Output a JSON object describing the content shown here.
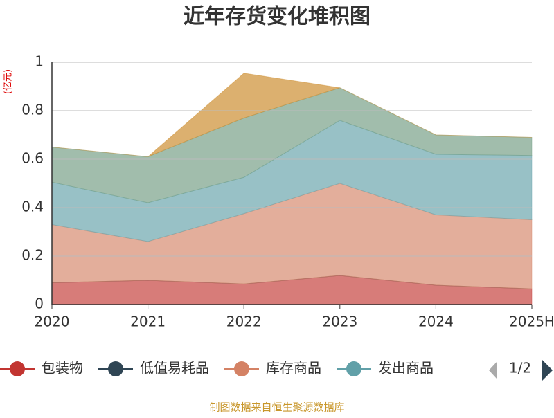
{
  "chart_data": {
    "type": "stacked_area",
    "title": "近年存货变化堆积图",
    "y_label": "(亿元)",
    "categories": [
      "2020",
      "2021",
      "2022",
      "2023",
      "2024",
      "2025H"
    ],
    "series": [
      {
        "name": "包装物",
        "color": "#c23531",
        "values": [
          0.09,
          0.1,
          0.085,
          0.12,
          0.08,
          0.065
        ]
      },
      {
        "name": "低值易耗品",
        "color": "#2f4554",
        "values": [
          0,
          0,
          0,
          0,
          0,
          0
        ]
      },
      {
        "name": "库存商品",
        "color": "#d48265",
        "values": [
          0.24,
          0.16,
          0.29,
          0.38,
          0.29,
          0.285
        ]
      },
      {
        "name": "发出商品",
        "color": "#61a0a8",
        "values": [
          0.175,
          0.16,
          0.15,
          0.26,
          0.25,
          0.265
        ]
      },
      {
        "color": "#6e9a7f",
        "values": [
          0.145,
          0.19,
          0.245,
          0.135,
          0.08,
          0.075
        ]
      },
      {
        "color": "#ca8622",
        "values": [
          0,
          0,
          0.185,
          0,
          0,
          0
        ]
      }
    ],
    "ylim": [
      0,
      1
    ],
    "yticks": [
      0,
      0.2,
      0.4,
      0.6,
      0.8,
      1
    ],
    "grid": true,
    "legend_page": "1/2",
    "source": "制图数据来自恒生聚源数据库"
  }
}
